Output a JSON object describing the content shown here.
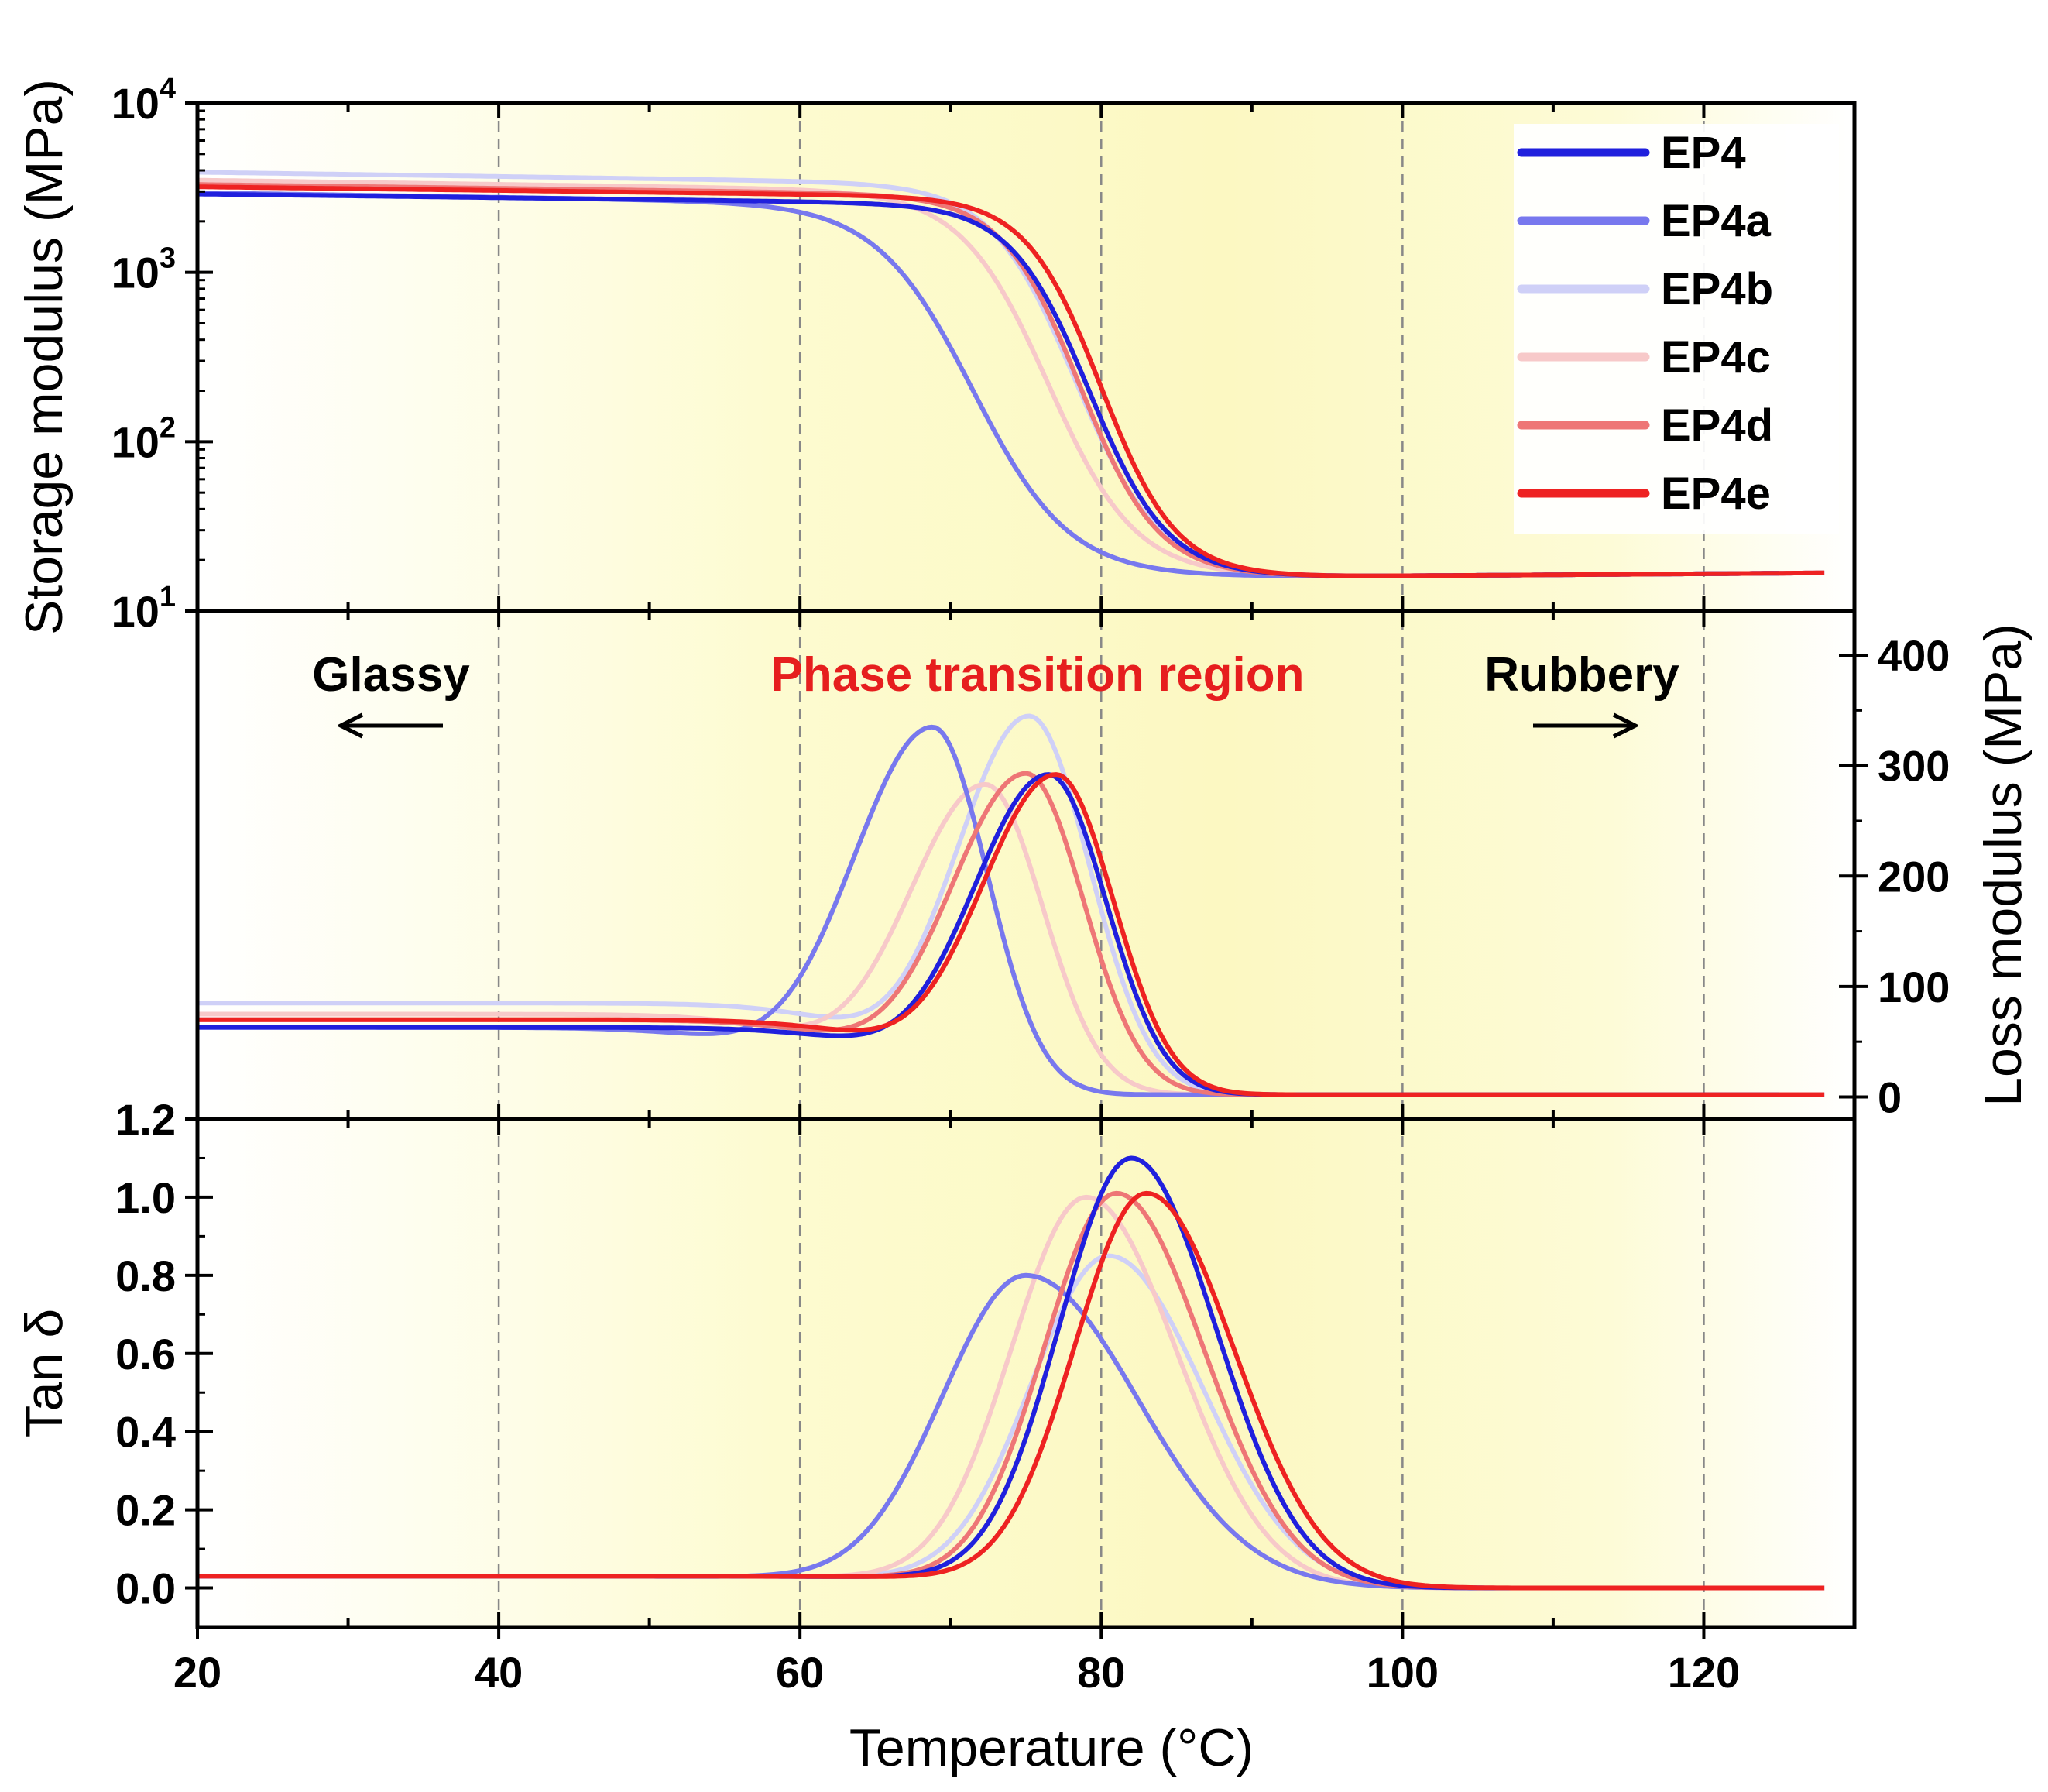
{
  "chart_data": {
    "type": "line",
    "title": "",
    "x": {
      "label": "Temperature (°C)",
      "range": [
        20,
        130
      ],
      "ticks": [
        20,
        40,
        60,
        80,
        100,
        120
      ],
      "tick_labels": [
        "20",
        "40",
        "60",
        "80",
        "100",
        "120"
      ],
      "gridlines": [
        40,
        60,
        80,
        100,
        120
      ]
    },
    "colors": {
      "EP4": "#2020dd",
      "EP4a": "#7878ee",
      "EP4b": "#cfd0f7",
      "EP4c": "#f7c9c9",
      "EP4d": "#ee7676",
      "EP4e": "#ee2222",
      "annotation_red": "#e61e1e",
      "background_band": "#fdfbd0"
    },
    "legend": {
      "position": "top-right",
      "entries": [
        "EP4",
        "EP4a",
        "EP4b",
        "EP4c",
        "EP4d",
        "EP4e"
      ]
    },
    "annotations": {
      "glassy": "Glassy",
      "transition": "Phase transition region",
      "rubbery": "Rubbery"
    },
    "panels": [
      {
        "id": "storage",
        "ylabel": "Storage modulus (MPa)",
        "yscale": "log",
        "ylim": [
          10,
          10000
        ],
        "ytick_labels": [
          {
            "value": 10,
            "base": "10",
            "exp": "1"
          },
          {
            "value": 100,
            "base": "10",
            "exp": "2"
          },
          {
            "value": 1000,
            "base": "10",
            "exp": "3"
          },
          {
            "value": 10000,
            "base": "10",
            "exp": "4"
          }
        ],
        "series": [
          {
            "name": "EP4",
            "glassy": 2900,
            "onset": 72,
            "midpoint": 79.2,
            "width": 2.6,
            "rubbery": 16,
            "end": 125
          },
          {
            "name": "EP4a",
            "glassy": 2950,
            "onset": 62,
            "midpoint": 71.5,
            "width": 3.2,
            "rubbery": 16,
            "end": 128
          },
          {
            "name": "EP4b",
            "glassy": 3900,
            "onset": 65,
            "midpoint": 78.3,
            "width": 2.8,
            "rubbery": 16,
            "end": 128
          },
          {
            "name": "EP4c",
            "glassy": 3500,
            "onset": 66,
            "midpoint": 76.5,
            "width": 2.9,
            "rubbery": 16,
            "end": 128
          },
          {
            "name": "EP4d",
            "glassy": 3300,
            "onset": 70,
            "midpoint": 78.6,
            "width": 2.6,
            "rubbery": 16,
            "end": 128
          },
          {
            "name": "EP4e",
            "glassy": 3200,
            "onset": 72,
            "midpoint": 80,
            "width": 2.5,
            "rubbery": 16,
            "end": 128
          }
        ]
      },
      {
        "id": "loss",
        "ylabel": "Loss modulus (MPa)",
        "yaxis_side": "right",
        "ylim": [
          -20,
          440
        ],
        "yticks": [
          0,
          100,
          200,
          300,
          400
        ],
        "ytick_labels": [
          "0",
          "100",
          "200",
          "300",
          "400"
        ],
        "series": [
          {
            "name": "EP4",
            "peak_x": 76.5,
            "peak_y": 292,
            "left_width": 5.2,
            "right_width": 3.8,
            "base": 63,
            "tail": 2,
            "end": 125
          },
          {
            "name": "EP4a",
            "peak_x": 68.8,
            "peak_y": 335,
            "left_width": 5.5,
            "right_width": 3.6,
            "base": 63,
            "tail": 2,
            "end": 128
          },
          {
            "name": "EP4b",
            "peak_x": 75.2,
            "peak_y": 345,
            "left_width": 5.0,
            "right_width": 4.0,
            "base": 85,
            "tail": 2,
            "end": 128
          },
          {
            "name": "EP4c",
            "peak_x": 72.3,
            "peak_y": 283,
            "left_width": 5.3,
            "right_width": 3.8,
            "base": 75,
            "tail": 2,
            "end": 128
          },
          {
            "name": "EP4d",
            "peak_x": 75.0,
            "peak_y": 293,
            "left_width": 5.2,
            "right_width": 3.8,
            "base": 70,
            "tail": 2,
            "end": 128
          },
          {
            "name": "EP4e",
            "peak_x": 77.0,
            "peak_y": 292,
            "left_width": 5.2,
            "right_width": 3.8,
            "base": 70,
            "tail": 2,
            "end": 128
          }
        ]
      },
      {
        "id": "tan_delta",
        "ylabel": "Tan δ",
        "ylim": [
          -0.1,
          1.2
        ],
        "yticks": [
          0.0,
          0.2,
          0.4,
          0.6,
          0.8,
          1.0,
          1.2
        ],
        "ytick_labels": [
          "0.0",
          "0.2",
          "0.4",
          "0.6",
          "0.8",
          "1.0",
          "1.2"
        ],
        "series": [
          {
            "name": "EP4",
            "peak_x": 82.0,
            "peak_y": 1.1,
            "left_width": 4.8,
            "right_width": 5.6,
            "base": 0.03,
            "tail": 0.0,
            "end": 125
          },
          {
            "name": "EP4a",
            "peak_x": 75.0,
            "peak_y": 0.8,
            "left_width": 5.6,
            "right_width": 7.4,
            "base": 0.03,
            "tail": 0.0,
            "end": 128
          },
          {
            "name": "EP4b",
            "peak_x": 80.5,
            "peak_y": 0.85,
            "left_width": 5.2,
            "right_width": 6.2,
            "base": 0.03,
            "tail": 0.0,
            "end": 128
          },
          {
            "name": "EP4c",
            "peak_x": 79.0,
            "peak_y": 1.0,
            "left_width": 5.0,
            "right_width": 6.0,
            "base": 0.03,
            "tail": 0.0,
            "end": 128
          },
          {
            "name": "EP4d",
            "peak_x": 81.0,
            "peak_y": 1.01,
            "left_width": 4.8,
            "right_width": 5.8,
            "base": 0.03,
            "tail": 0.0,
            "end": 128
          },
          {
            "name": "EP4e",
            "peak_x": 83.0,
            "peak_y": 1.01,
            "left_width": 4.8,
            "right_width": 5.8,
            "base": 0.03,
            "tail": 0.0,
            "end": 128
          }
        ]
      }
    ]
  }
}
